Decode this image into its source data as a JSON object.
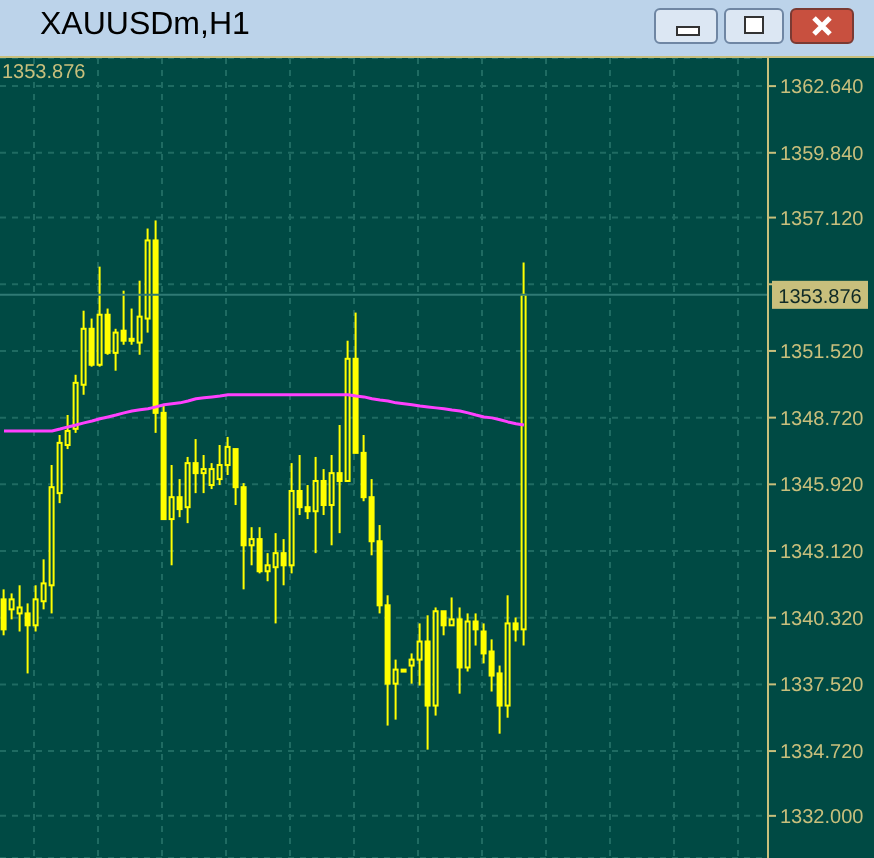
{
  "chart_data": {
    "type": "candlestick",
    "title": "XAUUSDm,H1",
    "color": "#ffff00",
    "categories": [
      null,
      null,
      null,
      null,
      null,
      null,
      null,
      null,
      null,
      null,
      null,
      null,
      null,
      null,
      null,
      null,
      null,
      null,
      null,
      null,
      null,
      null,
      null,
      null,
      null,
      null,
      null,
      null,
      null,
      null,
      null,
      null,
      null,
      null,
      null,
      null,
      null,
      null,
      null,
      null,
      null,
      null,
      null,
      null,
      null,
      null,
      null,
      null,
      null,
      null,
      null,
      null,
      null,
      null,
      null,
      null,
      null,
      null,
      null,
      null,
      null,
      null,
      null,
      null,
      null,
      null,
      null,
      null,
      null,
      null,
      null,
      null,
      null,
      null,
      null,
      null,
      null,
      null,
      null,
      null,
      null,
      null,
      null,
      null,
      null,
      null,
      null,
      null,
      null,
      null,
      null,
      null,
      null,
      null,
      null,
      null
    ],
    "ohlc": [
      [
        1341.09,
        1341.51,
        1339.58,
        1339.83
      ],
      [
        1340.67,
        1341.34,
        1340.25,
        1341.09
      ],
      [
        1340.5,
        1341.68,
        1339.74,
        1340.75
      ],
      [
        1340.5,
        1340.92,
        1337.98,
        1340.0
      ],
      [
        1340.0,
        1341.68,
        1339.74,
        1341.09
      ],
      [
        1341.01,
        1342.77,
        1340.67,
        1341.76
      ],
      [
        1341.68,
        1346.73,
        1340.5,
        1345.8
      ],
      [
        1345.55,
        1347.99,
        1345.13,
        1347.66
      ],
      [
        1347.57,
        1348.83,
        1347.4,
        1348.16
      ],
      [
        1348.25,
        1350.52,
        1348.08,
        1350.18
      ],
      [
        1350.1,
        1353.21,
        1349.68,
        1352.45
      ],
      [
        1352.45,
        1352.88,
        1350.86,
        1350.94
      ],
      [
        1350.94,
        1355.06,
        1350.86,
        1353.04
      ],
      [
        1353.04,
        1353.3,
        1351.36,
        1351.44
      ],
      [
        1351.44,
        1352.45,
        1350.69,
        1352.29
      ],
      [
        1352.37,
        1354.05,
        1351.78,
        1351.95
      ],
      [
        1351.95,
        1353.3,
        1351.78,
        1352.03
      ],
      [
        1351.87,
        1354.47,
        1351.36,
        1352.96
      ],
      [
        1352.88,
        1356.66,
        1352.29,
        1356.16
      ],
      [
        1356.16,
        1357.0,
        1348.08,
        1348.92
      ],
      [
        1348.92,
        1349.26,
        1344.46,
        1344.46
      ],
      [
        1344.46,
        1346.73,
        1342.52,
        1345.38
      ],
      [
        1345.38,
        1346.14,
        1344.54,
        1344.88
      ],
      [
        1344.96,
        1347.07,
        1344.29,
        1346.81
      ],
      [
        1346.81,
        1347.82,
        1345.55,
        1346.39
      ],
      [
        1346.39,
        1347.15,
        1345.55,
        1346.56
      ],
      [
        1345.89,
        1346.81,
        1345.72,
        1346.56
      ],
      [
        1346.14,
        1347.57,
        1345.89,
        1346.73
      ],
      [
        1346.73,
        1347.91,
        1346.31,
        1347.49
      ],
      [
        1347.4,
        1347.4,
        1345.05,
        1345.8
      ],
      [
        1345.8,
        1345.97,
        1341.51,
        1343.36
      ],
      [
        1343.36,
        1344.12,
        1342.52,
        1343.62
      ],
      [
        1343.62,
        1344.12,
        1342.18,
        1342.27
      ],
      [
        1342.27,
        1343.03,
        1341.85,
        1342.52
      ],
      [
        1342.44,
        1343.87,
        1340.08,
        1343.03
      ],
      [
        1343.03,
        1343.62,
        1341.68,
        1342.52
      ],
      [
        1342.52,
        1346.81,
        1342.18,
        1345.64
      ],
      [
        1345.64,
        1347.15,
        1344.63,
        1344.96
      ],
      [
        1344.96,
        1345.89,
        1344.46,
        1344.79
      ],
      [
        1344.79,
        1347.07,
        1343.03,
        1346.06
      ],
      [
        1346.06,
        1346.56,
        1344.63,
        1345.05
      ],
      [
        1345.05,
        1347.15,
        1343.36,
        1346.39
      ],
      [
        1346.39,
        1348.41,
        1343.87,
        1346.06
      ],
      [
        1346.06,
        1351.95,
        1346.06,
        1351.19
      ],
      [
        1351.19,
        1353.13,
        1347.24,
        1347.24
      ],
      [
        1347.24,
        1347.99,
        1345.21,
        1345.38
      ],
      [
        1345.38,
        1346.14,
        1342.94,
        1343.53
      ],
      [
        1343.53,
        1344.21,
        1340.5,
        1340.84
      ],
      [
        1340.84,
        1341.26,
        1335.79,
        1337.55
      ],
      [
        1337.55,
        1338.56,
        1336.04,
        1338.14
      ],
      [
        1338.14,
        1338.14,
        1338.06,
        1338.06
      ],
      [
        1338.31,
        1338.82,
        1337.55,
        1338.56
      ],
      [
        1338.56,
        1340.08,
        1337.47,
        1339.32
      ],
      [
        1339.32,
        1340.42,
        1334.78,
        1336.63
      ],
      [
        1336.63,
        1340.75,
        1336.21,
        1340.59
      ],
      [
        1340.59,
        1340.59,
        1339.58,
        1340.0
      ],
      [
        1340.0,
        1341.17,
        1340.0,
        1340.25
      ],
      [
        1340.25,
        1340.75,
        1337.13,
        1338.23
      ],
      [
        1338.23,
        1340.5,
        1338.06,
        1340.16
      ],
      [
        1340.16,
        1340.5,
        1339.15,
        1339.83
      ],
      [
        1339.74,
        1340.08,
        1338.4,
        1338.82
      ],
      [
        1338.9,
        1339.41,
        1337.22,
        1337.89
      ],
      [
        1337.98,
        1338.31,
        1335.45,
        1336.63
      ],
      [
        1336.63,
        1341.26,
        1336.12,
        1340.08
      ],
      [
        1340.08,
        1340.33,
        1339.32,
        1339.83
      ],
      [
        1339.83,
        1355.23,
        1339.15,
        1353.876
      ],
      null,
      null,
      null,
      null,
      null,
      null,
      null,
      null,
      null,
      null,
      null,
      null,
      null,
      null,
      null,
      null,
      null,
      null,
      null,
      null,
      null,
      null,
      null,
      null,
      null,
      null,
      null,
      null,
      null,
      null
    ],
    "series": [
      {
        "type": "line",
        "color": "#ff40ff",
        "values": [
          1348.16,
          1348.16,
          1348.16,
          1348.16,
          1348.16,
          1348.16,
          1348.16,
          1348.24,
          1348.33,
          1348.41,
          1348.5,
          1348.58,
          1348.67,
          1348.75,
          1348.83,
          1348.92,
          1349.0,
          1349.05,
          1349.09,
          1349.17,
          1349.26,
          1349.3,
          1349.34,
          1349.42,
          1349.51,
          1349.55,
          1349.59,
          1349.63,
          1349.68,
          1349.68,
          1349.68,
          1349.68,
          1349.68,
          1349.68,
          1349.68,
          1349.68,
          1349.68,
          1349.68,
          1349.68,
          1349.68,
          1349.68,
          1349.68,
          1349.68,
          1349.68,
          1349.63,
          1349.59,
          1349.51,
          1349.46,
          1349.42,
          1349.34,
          1349.3,
          1349.26,
          1349.21,
          1349.17,
          1349.13,
          1349.09,
          1349.04,
          1349.0,
          1348.92,
          1348.83,
          1348.75,
          1348.71,
          1348.63,
          1348.54,
          1348.46,
          1348.41,
          null,
          null,
          null,
          null,
          null,
          null,
          null,
          null,
          null,
          null,
          null,
          null,
          null,
          null,
          null,
          null,
          null,
          null,
          null,
          null,
          null,
          null,
          null,
          null,
          null,
          null,
          null,
          null,
          null,
          null
        ]
      }
    ],
    "ylim": [
      1330.23,
      1363.82
    ],
    "yticks": [
      {
        "value": 1332.0,
        "label": "1332.000"
      },
      {
        "value": 1334.72,
        "label": "1334.720"
      },
      {
        "value": 1337.52,
        "label": "1337.520"
      },
      {
        "value": 1340.32,
        "label": "1340.320"
      },
      {
        "value": 1343.12,
        "label": "1343.120"
      },
      {
        "value": 1345.92,
        "label": "1345.920"
      },
      {
        "value": 1348.72,
        "label": "1348.720"
      },
      {
        "value": 1351.52,
        "label": "1351.520"
      },
      {
        "value": 1354.32,
        "label": null
      },
      {
        "value": 1357.12,
        "label": "1357.120"
      },
      {
        "value": 1359.84,
        "label": "1359.840"
      },
      {
        "value": 1362.64,
        "label": "1362.640"
      }
    ],
    "ref_lines": [
      {
        "axis": "y",
        "value": 1353.876,
        "label": "1353.876",
        "color": "#2f7a74"
      }
    ],
    "annotations": [
      "1353.876"
    ],
    "grid": true,
    "tick_labels": "y"
  }
}
